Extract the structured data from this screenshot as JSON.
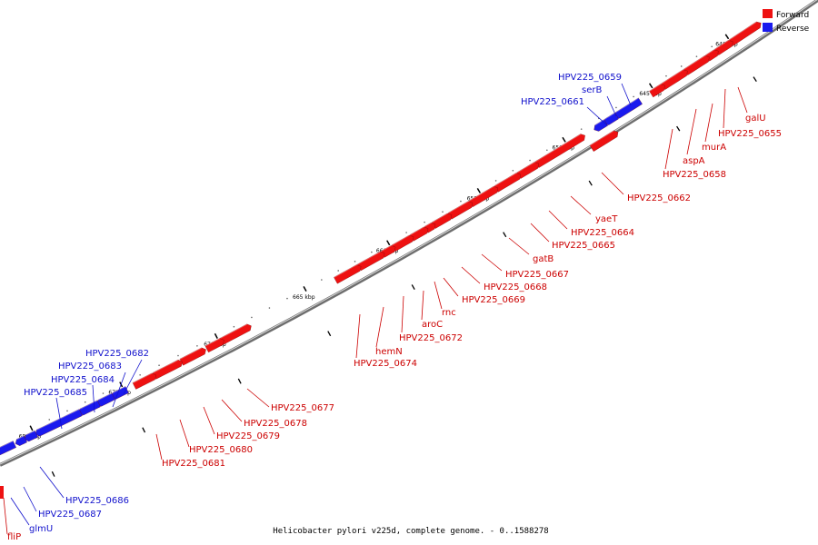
{
  "colors": {
    "forward": "#ee1111",
    "reverse": "#1a1aee"
  },
  "legend": {
    "forward": "Forward",
    "reverse": "Reverse"
  },
  "caption": "Helicobacter pylori v225d, complete genome. - 0..1588278",
  "scale": [
    "640 kbp",
    "645 kbp",
    "650 kbp",
    "655 kbp",
    "660 kbp",
    "665 kbp",
    "670 kbp",
    "675 kbp",
    "680 kbp"
  ],
  "genes": [
    {
      "label": "HPV225_0659",
      "strand": "reverse"
    },
    {
      "label": "serB",
      "strand": "reverse"
    },
    {
      "label": "HPV225_0661",
      "strand": "reverse"
    },
    {
      "label": "galU",
      "strand": "forward"
    },
    {
      "label": "HPV225_0655",
      "strand": "forward"
    },
    {
      "label": "murA",
      "strand": "forward"
    },
    {
      "label": "aspA",
      "strand": "forward"
    },
    {
      "label": "HPV225_0658",
      "strand": "forward"
    },
    {
      "label": "HPV225_0662",
      "strand": "forward"
    },
    {
      "label": "yaeT",
      "strand": "forward"
    },
    {
      "label": "HPV225_0664",
      "strand": "forward"
    },
    {
      "label": "HPV225_0665",
      "strand": "forward"
    },
    {
      "label": "gatB",
      "strand": "forward"
    },
    {
      "label": "HPV225_0667",
      "strand": "forward"
    },
    {
      "label": "HPV225_0668",
      "strand": "forward"
    },
    {
      "label": "HPV225_0669",
      "strand": "forward"
    },
    {
      "label": "rnc",
      "strand": "forward"
    },
    {
      "label": "aroC",
      "strand": "forward"
    },
    {
      "label": "HPV225_0672",
      "strand": "forward"
    },
    {
      "label": "hemN",
      "strand": "forward"
    },
    {
      "label": "HPV225_0674",
      "strand": "forward"
    },
    {
      "label": "HPV225_0682",
      "strand": "reverse"
    },
    {
      "label": "HPV225_0683",
      "strand": "reverse"
    },
    {
      "label": "HPV225_0684",
      "strand": "reverse"
    },
    {
      "label": "HPV225_0685",
      "strand": "reverse"
    },
    {
      "label": "HPV225_0677",
      "strand": "forward"
    },
    {
      "label": "HPV225_0678",
      "strand": "forward"
    },
    {
      "label": "HPV225_0679",
      "strand": "forward"
    },
    {
      "label": "HPV225_0680",
      "strand": "forward"
    },
    {
      "label": "HPV225_0681",
      "strand": "forward"
    },
    {
      "label": "HPV225_0686",
      "strand": "reverse"
    },
    {
      "label": "HPV225_0687",
      "strand": "reverse"
    },
    {
      "label": "glmU",
      "strand": "reverse"
    },
    {
      "label": "fliP",
      "strand": "forward"
    }
  ]
}
